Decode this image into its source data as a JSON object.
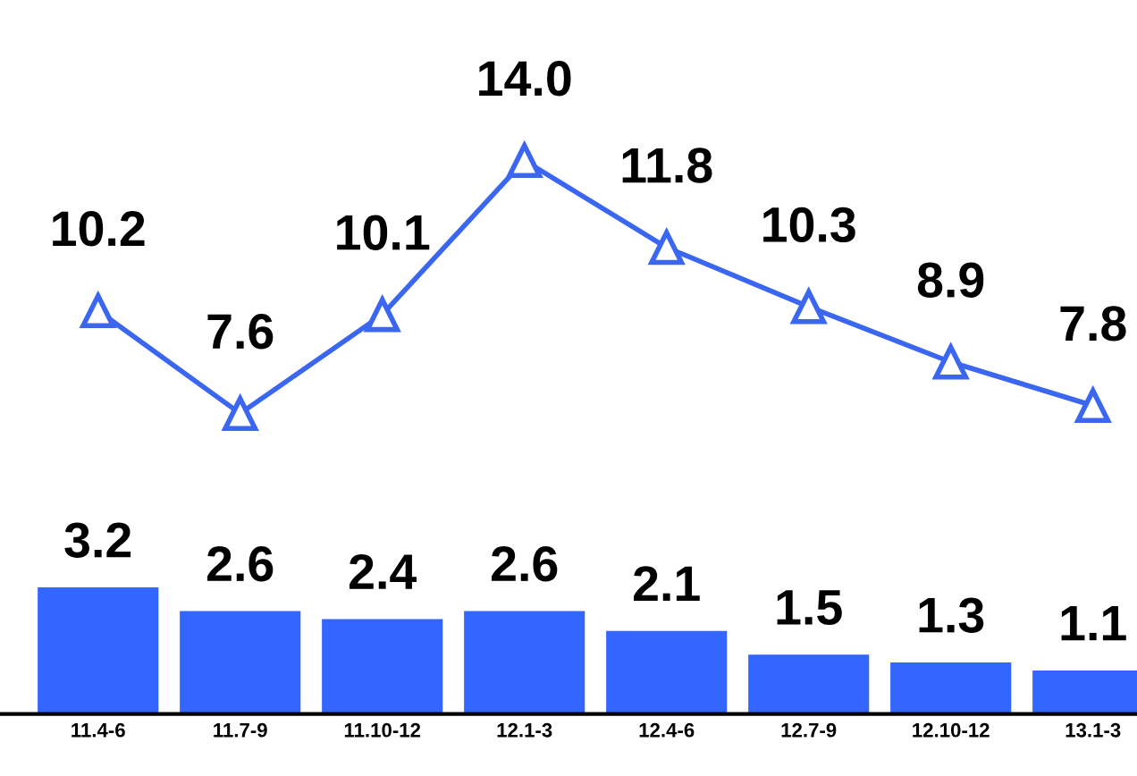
{
  "chart_data": {
    "type": "bar",
    "categories": [
      "11.4-6",
      "11.7-9",
      "11.10-12",
      "12.1-3",
      "12.4-6",
      "12.7-9",
      "12.10-12",
      "13.1-3"
    ],
    "series": [
      {
        "color": "#3366ff",
        "values": [
          3.2,
          2.6,
          2.4,
          2.6,
          2.1,
          1.5,
          1.3,
          1.1
        ]
      },
      {
        "type": "line",
        "color": "#3a66f0",
        "marker": "triangle",
        "values": [
          10.2,
          7.6,
          10.1,
          14.0,
          11.8,
          10.3,
          8.9,
          7.8
        ],
        "value_labels": [
          "10.2",
          "7.6",
          "10.1",
          "14.0",
          "11.8",
          "10.3",
          "8.9",
          "7.8"
        ]
      }
    ],
    "tick_labels": "x",
    "data_labels": true,
    "grid": false,
    "legend": false
  }
}
